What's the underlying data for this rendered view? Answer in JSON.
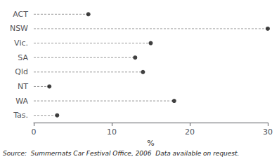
{
  "chart_data": {
    "type": "dot",
    "orientation": "horizontal",
    "categories": [
      "ACT",
      "NSW",
      "Vic.",
      "SA",
      "Qld",
      "NT",
      "WA",
      "Tas."
    ],
    "values": [
      7,
      30,
      15,
      13,
      14,
      2,
      18,
      3
    ],
    "color": "#111111",
    "marker": "circle",
    "line_style": "dashed",
    "xlabel": "%",
    "xlim": [
      0,
      30
    ],
    "xticks": [
      0,
      10,
      20,
      30
    ],
    "grid": false,
    "annotation": "Source:  Summernats Car Festival Office, 2006  Data available on request."
  }
}
